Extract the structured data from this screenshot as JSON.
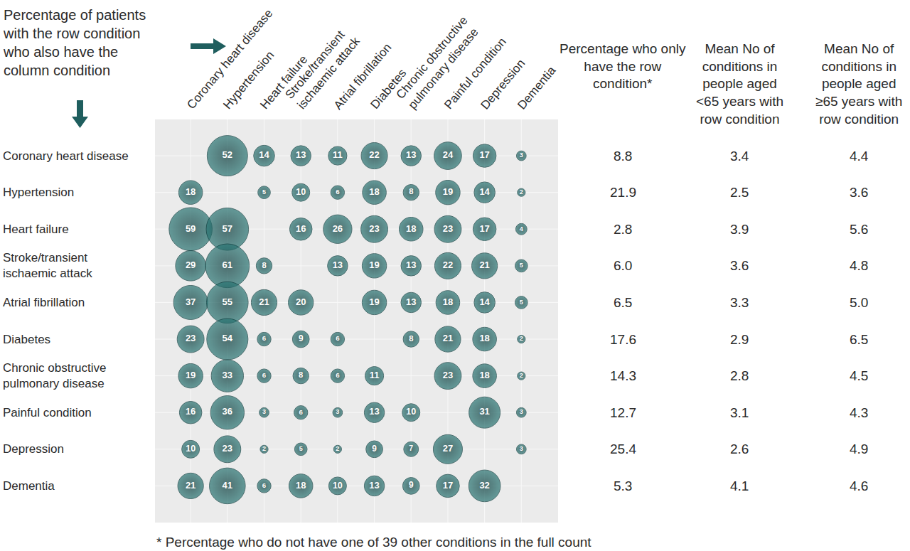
{
  "chart_data": {
    "type": "bubble_matrix",
    "title": [
      "Percentage of patients",
      "with the row condition",
      "who also have the",
      "column condition"
    ],
    "columns": [
      "Coronary heart disease",
      "Hypertension",
      "Heart failure",
      "Stroke/transient ischaemic attack",
      "Atrial fibrillation",
      "Diabetes",
      "Chronic obstructive pulmonary disease",
      "Painful condition",
      "Depression",
      "Dementia"
    ],
    "rows": [
      "Coronary heart disease",
      "Hypertension",
      "Heart failure",
      "Stroke/transient ischaemic attack",
      "Atrial fibrillation",
      "Diabetes",
      "Chronic obstructive pulmonary disease",
      "Painful condition",
      "Depression",
      "Dementia"
    ],
    "values": [
      [
        null,
        52,
        14,
        13,
        11,
        22,
        13,
        24,
        17,
        3
      ],
      [
        18,
        null,
        5,
        10,
        6,
        18,
        8,
        19,
        14,
        2
      ],
      [
        59,
        57,
        null,
        16,
        26,
        23,
        18,
        23,
        17,
        4
      ],
      [
        29,
        61,
        8,
        null,
        13,
        19,
        13,
        22,
        21,
        5
      ],
      [
        37,
        55,
        21,
        20,
        null,
        19,
        13,
        18,
        14,
        5
      ],
      [
        23,
        54,
        6,
        9,
        6,
        null,
        8,
        21,
        18,
        2
      ],
      [
        19,
        33,
        6,
        8,
        6,
        11,
        null,
        23,
        18,
        2
      ],
      [
        16,
        36,
        3,
        6,
        3,
        13,
        10,
        null,
        31,
        3
      ],
      [
        10,
        23,
        2,
        5,
        2,
        9,
        7,
        27,
        null,
        3
      ],
      [
        21,
        41,
        6,
        18,
        10,
        13,
        9,
        17,
        32,
        null
      ]
    ],
    "data_labels": true,
    "color": "#2b7775",
    "table": {
      "columns": [
        {
          "header": [
            "Percentage who only",
            "have the row",
            "condition*"
          ],
          "values": [
            "8.8",
            "21.9",
            "2.8",
            "6.0",
            "6.5",
            "17.6",
            "14.3",
            "12.7",
            "25.4",
            "5.3"
          ]
        },
        {
          "header": [
            "Mean No of",
            "conditions in",
            "people aged",
            "<65 years with",
            "row condition"
          ],
          "values": [
            "3.4",
            "2.5",
            "3.9",
            "3.6",
            "3.3",
            "2.9",
            "2.8",
            "3.1",
            "2.6",
            "4.1"
          ]
        },
        {
          "header": [
            "Mean No of",
            "conditions in",
            "people aged",
            "≥65 years with",
            "row condition"
          ],
          "values": [
            "4.4",
            "3.6",
            "5.6",
            "4.8",
            "5.0",
            "6.5",
            "4.5",
            "4.3",
            "4.9",
            "4.6"
          ]
        }
      ]
    },
    "footnote": "* Percentage who do not have one of 39 other conditions in the full count"
  }
}
